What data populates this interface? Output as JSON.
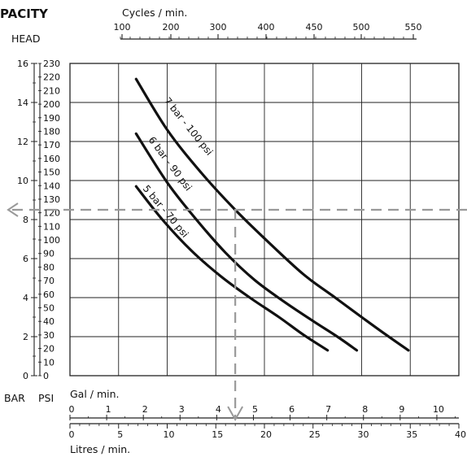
{
  "chart_data": {
    "type": "line",
    "title": "PACITY",
    "y_label_left": "HEAD",
    "top_axis": {
      "label": "Cycles / min.",
      "ticks": [
        100,
        200,
        300,
        400,
        450,
        500,
        550
      ],
      "tick_labels": [
        "100",
        "200",
        "300",
        "400",
        "450",
        "500",
        "550"
      ]
    },
    "bar_axis": {
      "label": "BAR",
      "range": [
        0,
        16
      ],
      "ticks": [
        0,
        2,
        4,
        6,
        8,
        10,
        12,
        14,
        16
      ],
      "tick_labels": [
        "0",
        "2",
        "4",
        "6",
        "8",
        "10",
        "12",
        "14",
        "16"
      ]
    },
    "psi_axis": {
      "label": "PSI",
      "range": [
        0,
        230
      ],
      "ticks": [
        0,
        10,
        20,
        30,
        40,
        50,
        60,
        70,
        80,
        90,
        100,
        110,
        120,
        130,
        140,
        150,
        160,
        170,
        180,
        190,
        200,
        210,
        220,
        230
      ],
      "tick_labels": [
        "0",
        "10",
        "20",
        "30",
        "40",
        "50",
        "60",
        "70",
        "80",
        "90",
        "100",
        "110",
        "120",
        "130",
        "140",
        "150",
        "160",
        "170",
        "180",
        "190",
        "200",
        "210",
        "220",
        "230"
      ]
    },
    "gal_axis": {
      "label": "Gal / min.",
      "range": [
        0,
        10.6
      ],
      "ticks": [
        0,
        1,
        2,
        3,
        4,
        5,
        6,
        7,
        8,
        9,
        10
      ],
      "tick_labels": [
        "0",
        "1",
        "2",
        "3",
        "4",
        "5",
        "6",
        "7",
        "8",
        "9",
        "10"
      ]
    },
    "litre_axis": {
      "label": "Litres / min.",
      "range": [
        0,
        40
      ],
      "ticks": [
        0,
        5,
        10,
        15,
        20,
        25,
        30,
        35,
        40
      ],
      "tick_labels": [
        "0",
        "5",
        "10",
        "15",
        "20",
        "25",
        "30",
        "35",
        "40"
      ]
    },
    "grid": true,
    "series": [
      {
        "name": "7 bar - 100 psi",
        "x_unit": "Litres / min.",
        "y_unit": "BAR",
        "points": [
          [
            6.8,
            15.2
          ],
          [
            10,
            12.6
          ],
          [
            13.5,
            10.4
          ],
          [
            17,
            8.5
          ],
          [
            20.5,
            6.8
          ],
          [
            24,
            5.2
          ],
          [
            27,
            4.1
          ],
          [
            30,
            3.0
          ],
          [
            32.5,
            2.1
          ],
          [
            34.8,
            1.3
          ]
        ]
      },
      {
        "name": "6 bar - 90 psi",
        "x_unit": "Litres / min.",
        "y_unit": "BAR",
        "points": [
          [
            6.8,
            12.4
          ],
          [
            10,
            9.9
          ],
          [
            13,
            8.0
          ],
          [
            16,
            6.3
          ],
          [
            19,
            4.9
          ],
          [
            22,
            3.8
          ],
          [
            25,
            2.8
          ],
          [
            27.5,
            2.0
          ],
          [
            29.5,
            1.3
          ]
        ]
      },
      {
        "name": "5 bar - 70 psi",
        "x_unit": "Litres / min.",
        "y_unit": "BAR",
        "points": [
          [
            6.8,
            9.7
          ],
          [
            9.5,
            8.0
          ],
          [
            12.5,
            6.4
          ],
          [
            15.5,
            5.1
          ],
          [
            18.5,
            4.0
          ],
          [
            21.5,
            3.0
          ],
          [
            24,
            2.1
          ],
          [
            26.5,
            1.3
          ]
        ]
      }
    ],
    "operating_point": {
      "litres_per_min": 17,
      "bar": 8.5
    }
  },
  "colors": {
    "curve": "#111111",
    "grid": "#222222",
    "guide": "#999999"
  }
}
